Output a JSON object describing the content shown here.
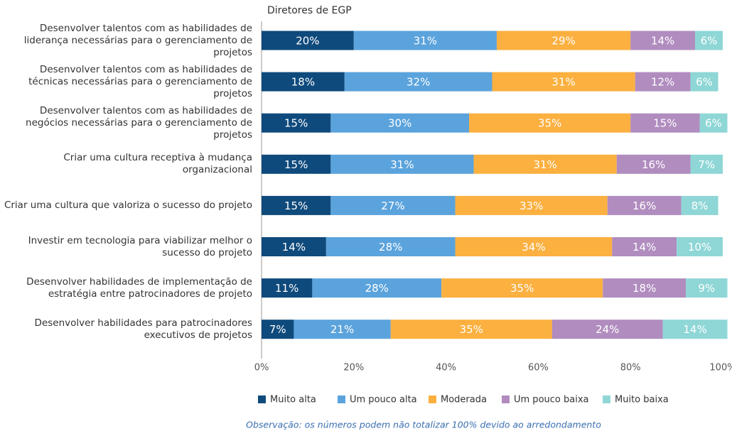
{
  "chart_data": {
    "type": "stacked-bar-horizontal",
    "title": "Diretores de EGP",
    "categories": [
      "Desenvolver talentos com as habilidades de liderança necessárias para o gerenciamento de projetos",
      "Desenvolver talentos com as habilidades de técnicas necessárias para o gerenciamento de projetos",
      "Desenvolver talentos com as habilidades de negócios necessárias para o gerenciamento de projetos",
      "Criar uma cultura receptiva à mudança organizacional",
      "Criar uma cultura que valoriza o sucesso do projeto",
      "Investir em tecnologia para viabilizar melhor o sucesso do projeto",
      "Desenvolver habilidades de implementação de estratégia entre patrocinadores de projeto",
      "Desenvolver habilidades para patrocinadores executivos de projetos"
    ],
    "series": [
      {
        "name": "Muito alta",
        "color": "#0f4a7c",
        "values": [
          20,
          18,
          15,
          15,
          15,
          14,
          11,
          7
        ],
        "value_labels": [
          "20%",
          "18%",
          "15%",
          "15%",
          "15%",
          "14%",
          "11%",
          "7%"
        ]
      },
      {
        "name": "Um pouco alta",
        "color": "#5ba3dc",
        "values": [
          31,
          32,
          30,
          31,
          27,
          28,
          28,
          21
        ],
        "value_labels": [
          "31%",
          "32%",
          "30%",
          "31%",
          "27%",
          "28%",
          "28%",
          "21%"
        ]
      },
      {
        "name": "Moderada",
        "color": "#fbb040",
        "values": [
          29,
          31,
          35,
          31,
          33,
          34,
          35,
          35
        ],
        "value_labels": [
          "29%",
          "31%",
          "35%",
          "31%",
          "33%",
          "34%",
          "35%",
          "35%"
        ]
      },
      {
        "name": "Um pouco baixa",
        "color": "#b08cbf",
        "values": [
          14,
          12,
          15,
          16,
          16,
          14,
          18,
          24
        ],
        "value_labels": [
          "14%",
          "12%",
          "15%",
          "16%",
          "16%",
          "14%",
          "18%",
          "24%"
        ]
      },
      {
        "name": "Muito baixa",
        "color": "#8fd6d6",
        "values": [
          6,
          6,
          6,
          7,
          8,
          10,
          9,
          14
        ],
        "value_labels": [
          "6%",
          "6%",
          "6%",
          "7%",
          "8%",
          "10%",
          "9%",
          "14%"
        ]
      }
    ],
    "xlim": [
      0,
      100
    ],
    "xticks": [
      {
        "value": 0,
        "label": "0%"
      },
      {
        "value": 20,
        "label": "20%"
      },
      {
        "value": 40,
        "label": "40%"
      },
      {
        "value": 60,
        "label": "60%"
      },
      {
        "value": 80,
        "label": "80%"
      },
      {
        "value": 100,
        "label": "100%"
      }
    ],
    "grid": false,
    "legend": "bottom",
    "note": "Observação: os números podem não totalizar 100% devido ao arredondamento"
  }
}
